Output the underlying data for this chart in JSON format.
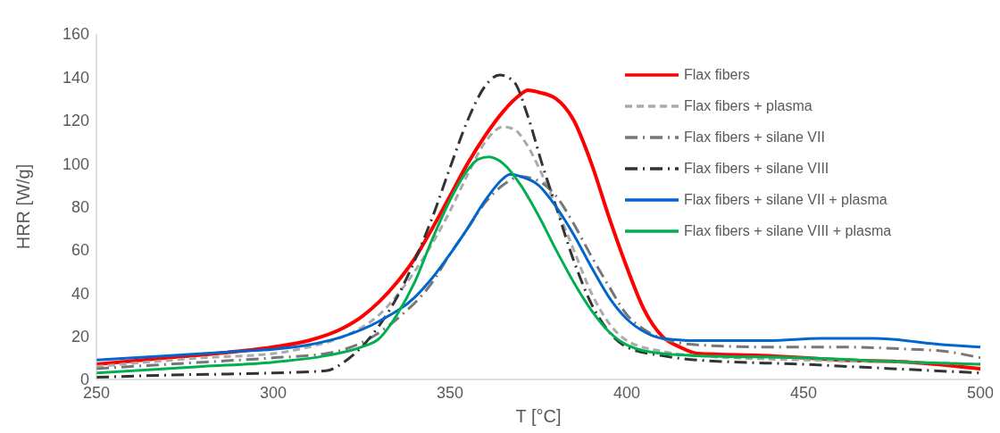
{
  "chart_data": {
    "type": "line",
    "xlabel": "T [°C]",
    "ylabel": "HRR [W/g]",
    "xlim": [
      250,
      500
    ],
    "xticks": [
      250,
      300,
      350,
      400,
      450,
      500
    ],
    "ylim": [
      0,
      160
    ],
    "yticks": [
      0,
      20,
      40,
      60,
      80,
      100,
      120,
      140,
      160
    ],
    "grid": false,
    "legend": "top right",
    "marker": "none",
    "series": [
      {
        "name": "Flax fibers",
        "color": "#ff0000",
        "line_style": "solid",
        "x": [
          250,
          270,
          290,
          300,
          310,
          320,
          325,
          330,
          335,
          340,
          345,
          350,
          355,
          360,
          365,
          370,
          372,
          375,
          380,
          385,
          390,
          395,
          400,
          405,
          410,
          415,
          420,
          440,
          460,
          480,
          500
        ],
        "values": [
          7,
          10,
          13,
          15,
          18,
          24,
          29,
          36,
          45,
          56,
          70,
          85,
          100,
          113,
          124,
          132,
          134,
          133,
          130,
          120,
          100,
          75,
          52,
          32,
          20,
          15,
          12,
          11,
          9,
          8,
          5
        ]
      },
      {
        "name": "Flax fibers + plasma",
        "color": "#aaaaaa",
        "line_style": "dashed",
        "x": [
          250,
          280,
          300,
          310,
          320,
          330,
          340,
          350,
          355,
          360,
          365,
          368,
          372,
          376,
          380,
          385,
          390,
          395,
          400,
          410,
          420,
          450,
          480,
          500
        ],
        "values": [
          6,
          10,
          12,
          15,
          20,
          30,
          50,
          78,
          95,
          110,
          117,
          116,
          108,
          95,
          80,
          60,
          40,
          26,
          18,
          13,
          11,
          9,
          8,
          7
        ]
      },
      {
        "name": "Flax fibers + silane VII",
        "color": "#777777",
        "line_style": "dashdot",
        "x": [
          250,
          280,
          300,
          315,
          325,
          335,
          345,
          350,
          355,
          360,
          365,
          370,
          375,
          380,
          385,
          390,
          395,
          400,
          405,
          410,
          420,
          440,
          460,
          480,
          490,
          500
        ],
        "values": [
          5,
          8,
          10,
          12,
          17,
          28,
          45,
          58,
          70,
          82,
          90,
          94,
          92,
          85,
          72,
          57,
          43,
          30,
          23,
          19,
          16,
          15,
          15,
          14,
          13,
          10
        ]
      },
      {
        "name": "Flax fibers + silane VIII",
        "color": "#333333",
        "line_style": "dashdot",
        "x": [
          250,
          270,
          300,
          315,
          320,
          325,
          330,
          335,
          340,
          345,
          350,
          355,
          360,
          364,
          368,
          372,
          376,
          380,
          385,
          390,
          395,
          400,
          410,
          420,
          450,
          475,
          500
        ],
        "values": [
          1,
          2,
          3,
          4,
          8,
          15,
          25,
          38,
          55,
          75,
          98,
          120,
          136,
          141,
          138,
          122,
          100,
          80,
          55,
          35,
          22,
          15,
          11,
          9,
          7,
          5,
          3
        ]
      },
      {
        "name": "Flax fibers + silane VII + plasma",
        "color": "#0066cc",
        "line_style": "solid",
        "x": [
          250,
          270,
          290,
          300,
          310,
          320,
          330,
          340,
          345,
          350,
          355,
          360,
          365,
          367,
          370,
          375,
          380,
          385,
          390,
          395,
          400,
          405,
          410,
          420,
          440,
          455,
          470,
          490,
          500
        ],
        "values": [
          9,
          11,
          13,
          14,
          16,
          20,
          27,
          38,
          47,
          58,
          70,
          83,
          93,
          95,
          94,
          90,
          80,
          67,
          52,
          38,
          28,
          22,
          19,
          18,
          18,
          19,
          19,
          16,
          15
        ]
      },
      {
        "name": "Flax fibers + silane VIII + plasma",
        "color": "#00b050",
        "line_style": "solid",
        "x": [
          250,
          280,
          300,
          315,
          325,
          330,
          335,
          340,
          345,
          350,
          355,
          358,
          361,
          365,
          370,
          375,
          380,
          385,
          390,
          395,
          400,
          410,
          420,
          450,
          480,
          500
        ],
        "values": [
          3,
          6,
          8,
          11,
          15,
          19,
          30,
          45,
          65,
          83,
          97,
          102,
          103,
          100,
          90,
          76,
          60,
          45,
          32,
          22,
          16,
          12,
          11,
          10,
          8,
          7
        ]
      }
    ]
  }
}
